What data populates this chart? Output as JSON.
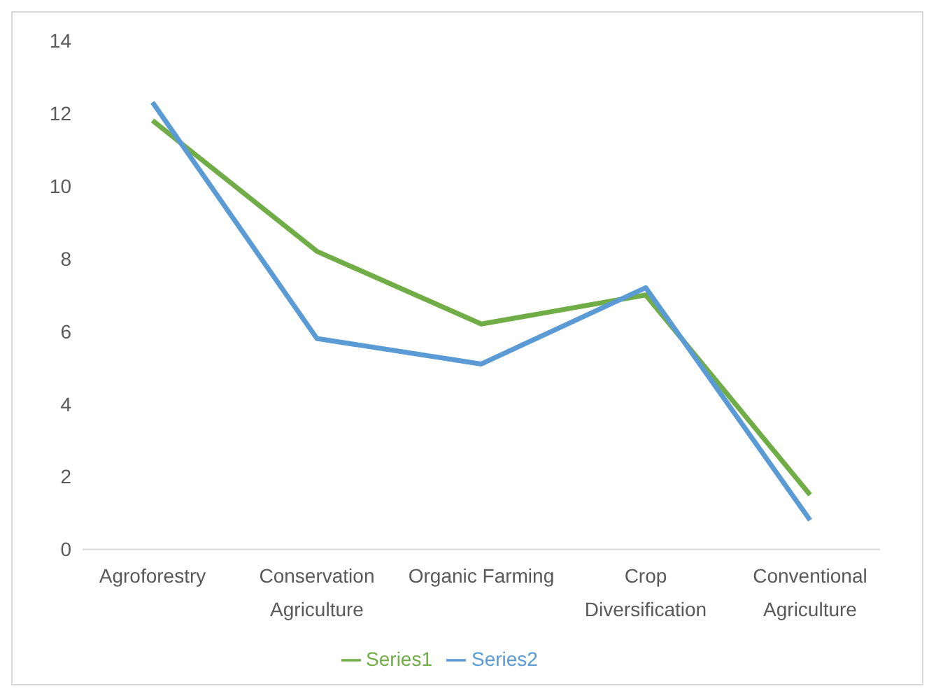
{
  "chart_data": {
    "type": "line",
    "categories": [
      "Agroforestry",
      "Conservation Agriculture",
      "Organic Farming",
      "Crop Diversification",
      "Conventional Agriculture"
    ],
    "series": [
      {
        "name": "Series1",
        "color": "#70ad47",
        "values": [
          11.8,
          8.2,
          6.2,
          7.0,
          1.5
        ]
      },
      {
        "name": "Series2",
        "color": "#5b9bd5",
        "values": [
          12.3,
          5.8,
          5.1,
          7.2,
          0.8
        ]
      }
    ],
    "ylim": [
      0,
      14
    ],
    "yticks": [
      0,
      2,
      4,
      6,
      8,
      10,
      12,
      14
    ],
    "grid": false,
    "legend": "bottom",
    "marker": "none",
    "line_style": "solid"
  }
}
